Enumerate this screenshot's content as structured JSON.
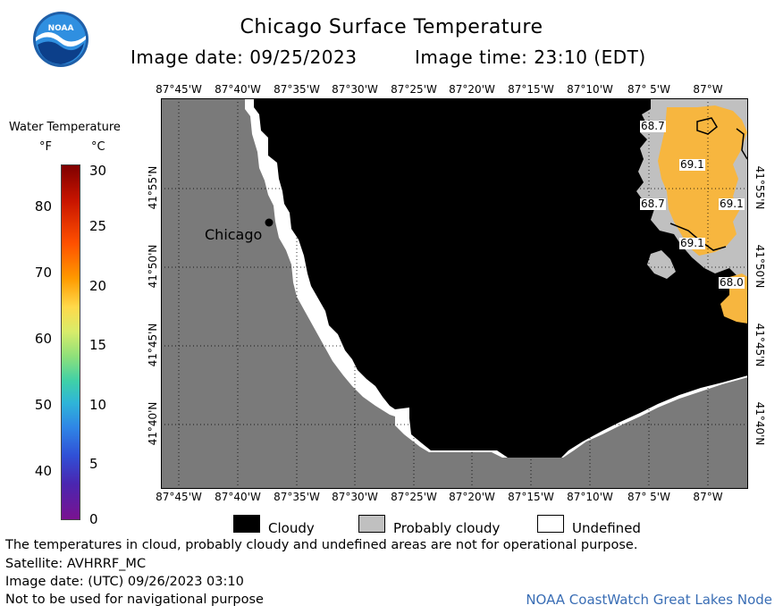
{
  "header": {
    "title": "Chicago Surface Temperature",
    "image_date": "Image date: 09/25/2023",
    "image_time": "Image time: 23:10 (EDT)"
  },
  "logo": {
    "text": "NOAA"
  },
  "map": {
    "lon_labels": [
      "87°45'W",
      "87°40'W",
      "87°35'W",
      "87°30'W",
      "87°25'W",
      "87°20'W",
      "87°15'W",
      "87°10'W",
      "87° 5'W",
      "87°W"
    ],
    "lat_labels": [
      "41°55'N",
      "41°50'N",
      "41°45'N",
      "41°40'N"
    ],
    "city_label": "Chicago",
    "temp_labels": [
      "68.7",
      "69.1",
      "68.7",
      "69.1",
      "69.1",
      "68.0"
    ],
    "colors": {
      "land": "#7a7a7a",
      "cloudy": "#000000",
      "undefined": "#ffffff",
      "probably_cloudy": "#c0c0c0",
      "warm": "#f7b63f"
    }
  },
  "scale": {
    "title": "Water Temperature",
    "unit_f": "°F",
    "unit_c": "°C",
    "ticks_f": [
      "80",
      "70",
      "60",
      "50",
      "40"
    ],
    "ticks_c": [
      "30",
      "25",
      "20",
      "15",
      "10",
      "5",
      "0"
    ]
  },
  "legend": {
    "cloudy": "Cloudy",
    "probably_cloudy": "Probably cloudy",
    "undefined": "Undefined"
  },
  "footer": {
    "note": "The temperatures in cloud, probably cloudy and undefined areas are not for operational purpose.",
    "satellite": "Satellite: AVHRRF_MC",
    "utc_date": "Image date: (UTC) 09/26/2023  03:10",
    "nav": "Not to be used for navigational purpose",
    "node": "NOAA CoastWatch Great Lakes Node"
  }
}
